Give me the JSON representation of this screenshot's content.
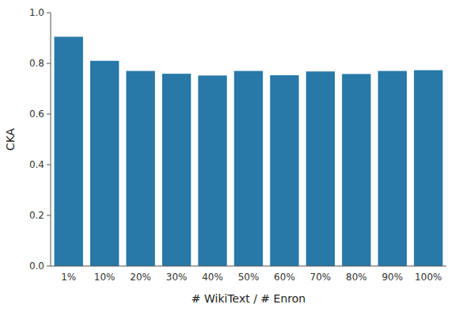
{
  "chart_data": {
    "type": "bar",
    "categories": [
      "1%",
      "10%",
      "20%",
      "30%",
      "40%",
      "50%",
      "60%",
      "70%",
      "80%",
      "90%",
      "100%"
    ],
    "values": [
      0.905,
      0.81,
      0.77,
      0.759,
      0.752,
      0.77,
      0.753,
      0.768,
      0.758,
      0.77,
      0.773
    ],
    "color": "#2878a8",
    "xlabel": "# WikiText / # Enron",
    "ylabel": "CKA",
    "ylim": [
      0.0,
      1.0
    ],
    "yticks": [
      {
        "value": 0.0,
        "label": "0.0"
      },
      0.2,
      0.4,
      0.6,
      0.8,
      {
        "value": 1.0,
        "label": "1.0"
      }
    ],
    "grid": false
  }
}
